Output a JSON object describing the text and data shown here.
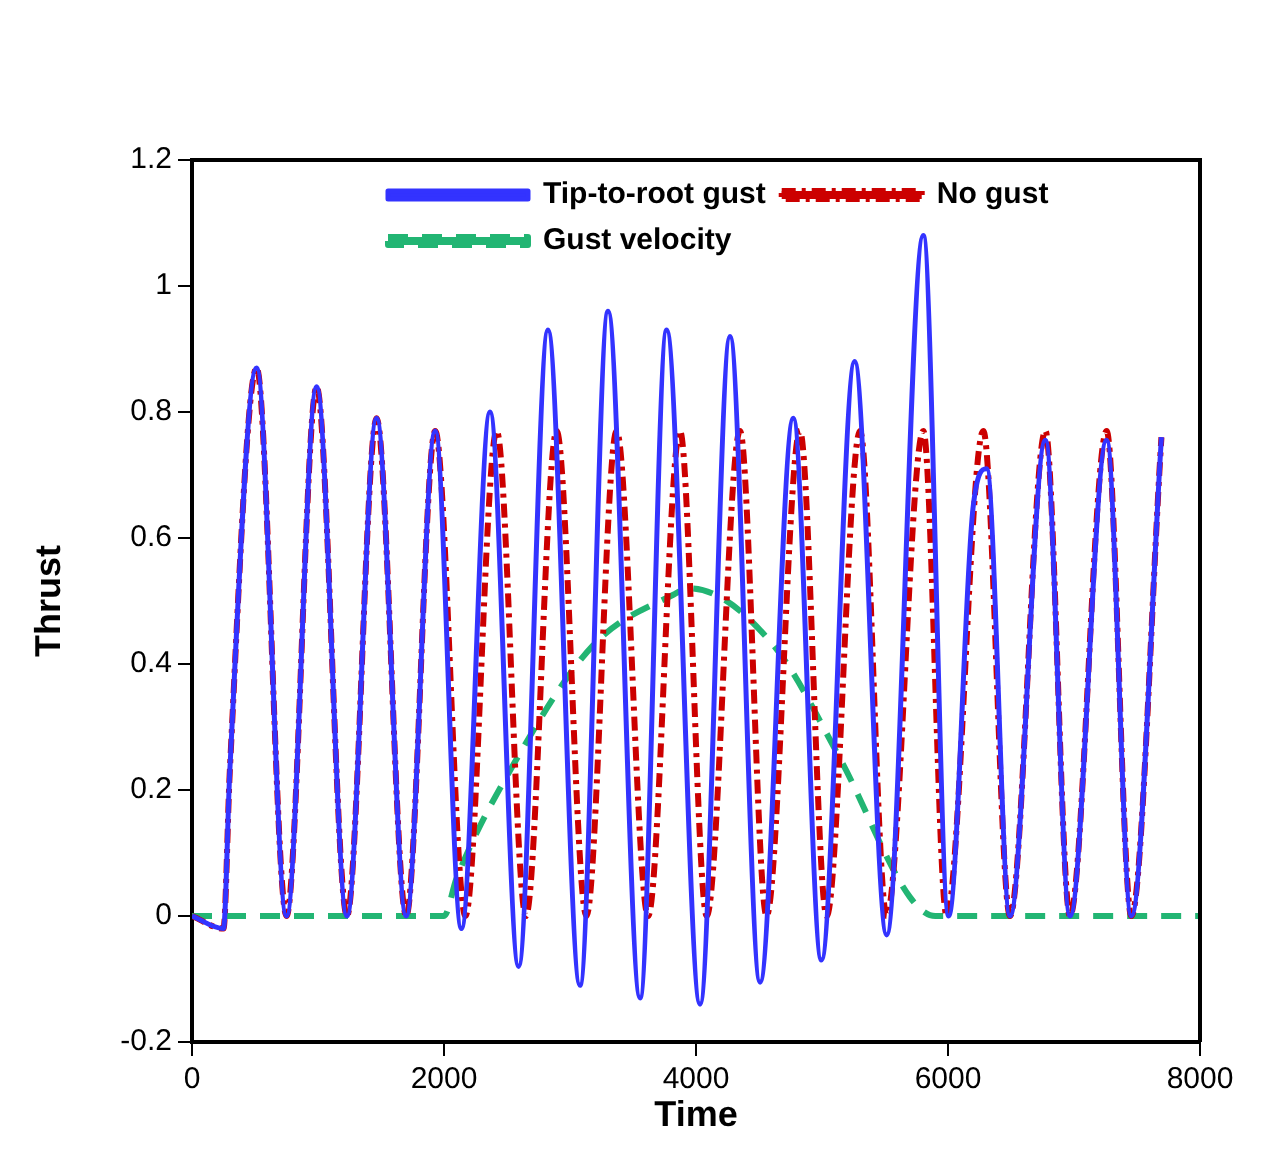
{
  "chart_data": {
    "type": "line",
    "xlabel": "Time",
    "ylabel": "Thrust",
    "xlim": [
      0,
      8000
    ],
    "xticks": [
      0,
      2000,
      4000,
      6000,
      8000
    ],
    "ylim": [
      -0.2,
      1.2
    ],
    "yticks": [
      -0.2,
      0,
      0.2,
      0.4,
      0.6,
      0.8,
      1,
      1.2
    ],
    "grid": false,
    "legend": "top left",
    "marker": "none",
    "series": [
      {
        "name": "Tip-to-root gust",
        "color": "#3333ff",
        "line_style": "solid",
        "x": [
          0,
          250,
          300,
          513,
          750,
          989,
          1230,
          1465,
          1700,
          1930,
          2138,
          2365,
          2592,
          2825,
          3079,
          3302,
          3556,
          3767,
          4032,
          4270,
          4508,
          4772,
          4995,
          5259,
          5513,
          5804,
          6005,
          6200,
          6307,
          6492,
          6773,
          6968,
          7259,
          7455,
          7694
        ],
        "values": [
          0,
          -0.02,
          0.23,
          0.87,
          0,
          0.84,
          0,
          0.79,
          0,
          0.77,
          -0.02,
          0.8,
          -0.08,
          0.93,
          -0.11,
          0.96,
          -0.13,
          0.93,
          -0.14,
          0.92,
          -0.105,
          0.79,
          -0.07,
          0.88,
          -0.03,
          1.08,
          0,
          0.65,
          0.71,
          0,
          0.755,
          0,
          0.755,
          0,
          0.76
        ]
      },
      {
        "name": "No gust",
        "color": "#cc0000",
        "line_style": "dashdot",
        "x": [
          0,
          250,
          300,
          513,
          750,
          989,
          1230,
          1465,
          1700,
          1930,
          2170,
          2418,
          2650,
          2894,
          3130,
          3370,
          3620,
          3873,
          4085,
          4349,
          4560,
          4825,
          5037,
          5302,
          5513,
          5804,
          5989,
          6280,
          6492,
          6773,
          6968,
          7259,
          7455,
          7694
        ],
        "values": [
          0,
          -0.02,
          0.23,
          0.87,
          0,
          0.84,
          0,
          0.79,
          0,
          0.77,
          0,
          0.77,
          0,
          0.77,
          0,
          0.77,
          0,
          0.77,
          0,
          0.77,
          0,
          0.77,
          0,
          0.77,
          0,
          0.77,
          0,
          0.77,
          0,
          0.77,
          0,
          0.77,
          0,
          0.76
        ]
      },
      {
        "name": "Gust velocity",
        "color": "#22b573",
        "line_style": "dashed",
        "x": [
          0,
          2000,
          2100,
          2550,
          3185,
          3820,
          3950,
          4614,
          5143,
          5698,
          5900,
          8000
        ],
        "values": [
          0,
          0,
          0.06,
          0.24,
          0.43,
          0.51,
          0.52,
          0.43,
          0.25,
          0.03,
          0,
          0
        ]
      }
    ]
  }
}
